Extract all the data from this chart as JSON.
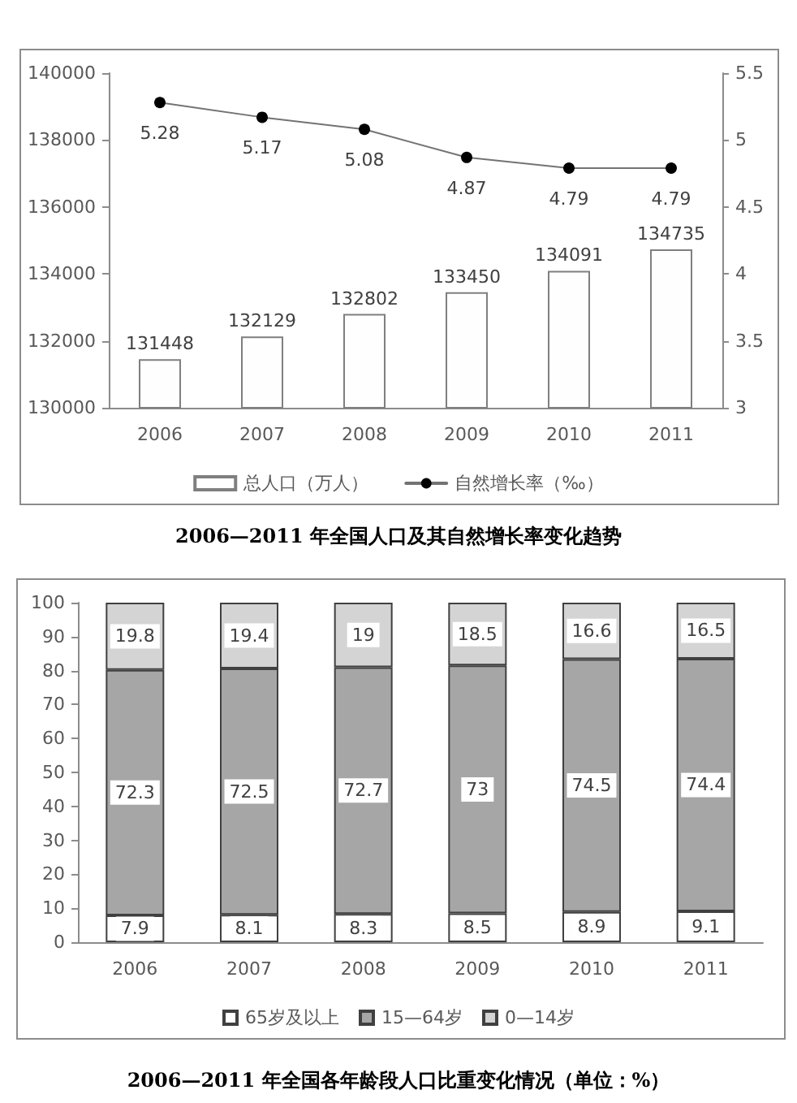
{
  "chart_data": [
    {
      "type": "bar",
      "title": "2006—2011 年全国人口及其自然增长率变化趋势",
      "categories": [
        "2006",
        "2007",
        "2008",
        "2009",
        "2010",
        "2011"
      ],
      "series": [
        {
          "name": "总人口（万人）",
          "color": "#fefefe",
          "values": [
            131448,
            132129,
            132802,
            133450,
            134091,
            134735
          ]
        },
        {
          "name": "自然增长率（‰）",
          "type": "line",
          "axis": "y2",
          "color": "#000000",
          "values": [
            5.28,
            5.17,
            5.08,
            4.87,
            4.79,
            4.79
          ]
        }
      ],
      "ylim": [
        130000,
        140000
      ],
      "yticks": [
        130000,
        132000,
        134000,
        136000,
        138000,
        140000
      ],
      "y2lim": [
        3,
        5.5
      ],
      "y2ticks": [
        3,
        3.5,
        4,
        4.5,
        5,
        5.5
      ],
      "data_labels": true,
      "legend": "bottom",
      "grid": false,
      "marker": "circle"
    },
    {
      "type": "bar",
      "stacked": true,
      "title": "2006—2011 年全国各年龄段人口比重变化情况（单位：%）",
      "categories": [
        "2006",
        "2007",
        "2008",
        "2009",
        "2010",
        "2011"
      ],
      "series": [
        {
          "name": "65岁及以上",
          "color": "#fefefe",
          "values": [
            7.9,
            8.1,
            8.3,
            8.5,
            8.9,
            9.1
          ]
        },
        {
          "name": "15—64岁",
          "color": "#a6a6a6",
          "values": [
            72.3,
            72.5,
            72.7,
            73,
            74.5,
            74.4
          ]
        },
        {
          "name": "0—14岁",
          "color": "#d4d4d4",
          "values": [
            19.8,
            19.4,
            19,
            18.5,
            16.6,
            16.5
          ]
        }
      ],
      "ylim": [
        0,
        100
      ],
      "yticks": [
        0,
        10,
        20,
        30,
        40,
        50,
        60,
        70,
        80,
        90,
        100
      ],
      "data_labels": true,
      "legend": "bottom",
      "grid": false
    }
  ]
}
